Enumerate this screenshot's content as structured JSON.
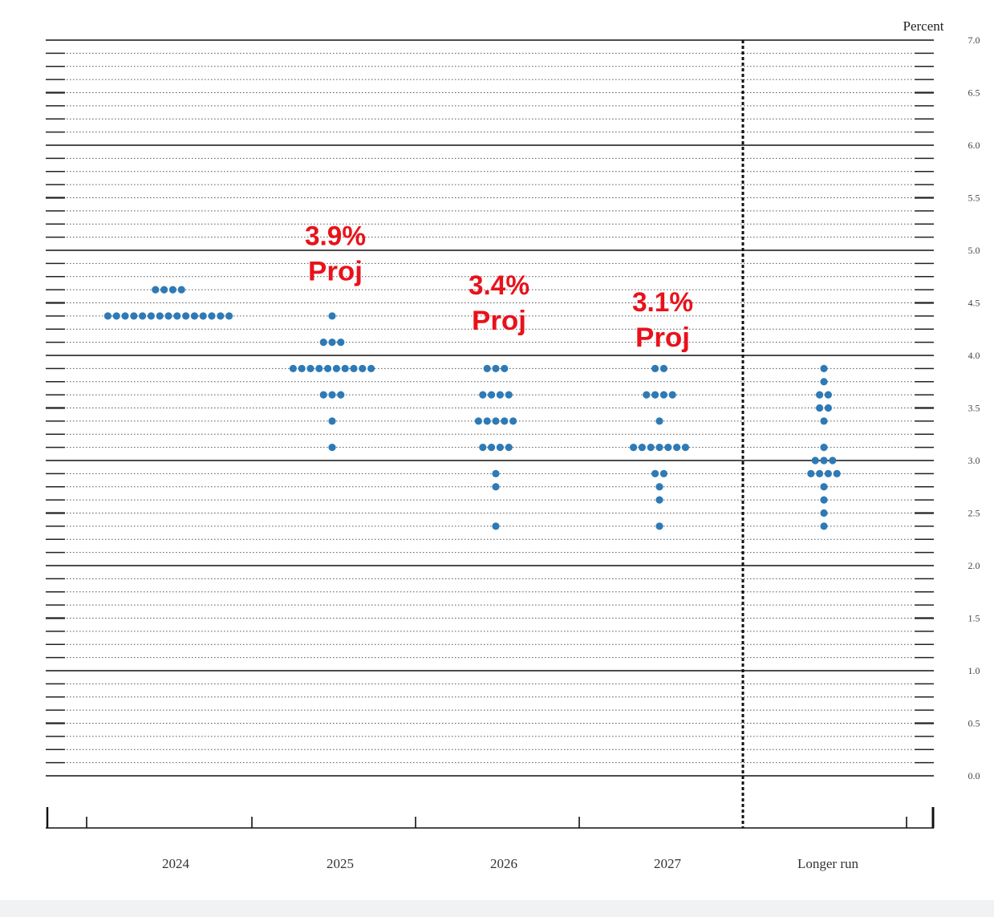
{
  "chart_data": {
    "type": "scatter",
    "subtype": "dot-plot",
    "ylabel": "Percent",
    "ylim": [
      0,
      7
    ],
    "y_tick_labels": [
      "0.0",
      "0.5",
      "1.0",
      "1.5",
      "2.0",
      "2.5",
      "3.0",
      "3.5",
      "4.0",
      "4.5",
      "5.0",
      "5.5",
      "6.0",
      "6.5",
      "7.0"
    ],
    "categories": [
      "2024",
      "2025",
      "2026",
      "2027",
      "Longer run"
    ],
    "grid": "horizontal every 0.125, solid every 1.0",
    "dot_color": "#2e7ab6",
    "annotation_color": "#e8121b",
    "divider": "dashed vertical line between 2027 and Longer run",
    "columns": [
      {
        "category": "2024",
        "points": [
          {
            "y": 4.625,
            "count": 4
          },
          {
            "y": 4.375,
            "count": 15
          }
        ]
      },
      {
        "category": "2025",
        "points": [
          {
            "y": 4.375,
            "count": 1
          },
          {
            "y": 4.125,
            "count": 3
          },
          {
            "y": 3.875,
            "count": 10
          },
          {
            "y": 3.625,
            "count": 3
          },
          {
            "y": 3.375,
            "count": 1
          },
          {
            "y": 3.125,
            "count": 1
          }
        ]
      },
      {
        "category": "2026",
        "points": [
          {
            "y": 3.875,
            "count": 3
          },
          {
            "y": 3.625,
            "count": 4
          },
          {
            "y": 3.375,
            "count": 5
          },
          {
            "y": 3.125,
            "count": 4
          },
          {
            "y": 2.875,
            "count": 1
          },
          {
            "y": 2.75,
            "count": 1
          },
          {
            "y": 2.375,
            "count": 1
          }
        ]
      },
      {
        "category": "2027",
        "points": [
          {
            "y": 3.875,
            "count": 2
          },
          {
            "y": 3.625,
            "count": 4
          },
          {
            "y": 3.375,
            "count": 1
          },
          {
            "y": 3.125,
            "count": 7
          },
          {
            "y": 2.875,
            "count": 2
          },
          {
            "y": 2.75,
            "count": 1
          },
          {
            "y": 2.625,
            "count": 1
          },
          {
            "y": 2.375,
            "count": 1
          }
        ]
      },
      {
        "category": "Longer run",
        "points": [
          {
            "y": 3.875,
            "count": 1
          },
          {
            "y": 3.75,
            "count": 1
          },
          {
            "y": 3.625,
            "count": 2
          },
          {
            "y": 3.5,
            "count": 2
          },
          {
            "y": 3.375,
            "count": 1
          },
          {
            "y": 3.125,
            "count": 1
          },
          {
            "y": 3.0,
            "count": 3
          },
          {
            "y": 2.875,
            "count": 4
          },
          {
            "y": 2.75,
            "count": 1
          },
          {
            "y": 2.625,
            "count": 1
          },
          {
            "y": 2.5,
            "count": 1
          },
          {
            "y": 2.375,
            "count": 1
          }
        ]
      }
    ],
    "annotations": [
      {
        "category": "2025",
        "value": "3.9%",
        "label": "Proj",
        "y": 5.05
      },
      {
        "category": "2026",
        "value": "3.4%",
        "label": "Proj",
        "y": 4.58
      },
      {
        "category": "2027",
        "value": "3.1%",
        "label": "Proj",
        "y": 4.42
      }
    ]
  }
}
